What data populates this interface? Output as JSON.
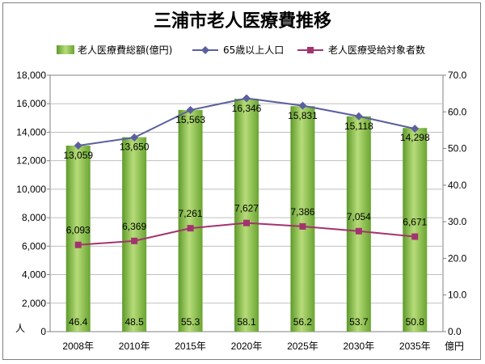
{
  "chart_data": {
    "type": "bar",
    "title": "三浦市老人医療費推移",
    "categories": [
      "2008年",
      "2010年",
      "2015年",
      "2020年",
      "2025年",
      "2030年",
      "2035年"
    ],
    "series": [
      {
        "name": "老人医療費総額(億円)",
        "type": "bar",
        "axis": "left",
        "values": [
          13059,
          13650,
          15563,
          16346,
          15831,
          15118,
          14298
        ],
        "data_labels": [
          "13,059",
          "13,650",
          "15,563",
          "16,346",
          "15,831",
          "15,118",
          "14,298"
        ],
        "bottom_labels": [
          "46.4",
          "48.5",
          "55.3",
          "58.1",
          "56.2",
          "53.7",
          "50.8"
        ],
        "color": "#7db342"
      },
      {
        "name": "65歳以上人口",
        "type": "line",
        "axis": "right",
        "values": [
          50.8,
          53.0,
          60.5,
          63.7,
          61.7,
          58.8,
          55.4
        ],
        "color": "#5b5f9e"
      },
      {
        "name": "老人医療受給対象者数",
        "type": "line",
        "axis": "left",
        "values": [
          6093,
          6369,
          7261,
          7627,
          7386,
          7054,
          6671
        ],
        "data_labels": [
          "6,093",
          "6,369",
          "7,261",
          "7,627",
          "7,386",
          "7,054",
          "6,671"
        ],
        "color": "#a3336e"
      }
    ],
    "y_left": {
      "range": [
        0,
        18000
      ],
      "ticks": [
        "0",
        "2,000",
        "4,000",
        "6,000",
        "8,000",
        "10,000",
        "12,000",
        "14,000",
        "16,000",
        "18,000"
      ],
      "unit": "人"
    },
    "y_right": {
      "range": [
        0,
        70
      ],
      "ticks": [
        "0.0",
        "10.0",
        "20.0",
        "30.0",
        "40.0",
        "50.0",
        "60.0",
        "70.0"
      ],
      "unit": "億円"
    },
    "grid": true,
    "legend_position": "top"
  }
}
